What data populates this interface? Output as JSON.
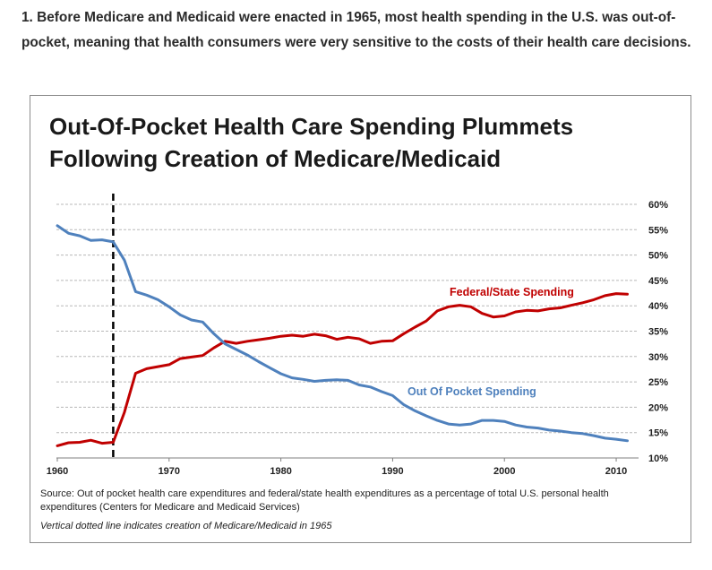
{
  "intro": {
    "number": "1.",
    "text": "Before Medicare and Medicaid were enacted in 1965, most health spending in the U.S. was out-of-pocket, meaning that health consumers were very sensitive to the costs of their health care decisions."
  },
  "chart_data": {
    "type": "line",
    "title_line1": "Out-Of-Pocket Health Care Spending Plummets",
    "title_line2": "Following Creation of Medicare/Medicaid",
    "xlabel": "",
    "ylabel": "",
    "xlim": [
      1960,
      2012
    ],
    "ylim": [
      10,
      60
    ],
    "x_ticks": [
      "1960",
      "1970",
      "1980",
      "1990",
      "2000",
      "2010"
    ],
    "y_ticks": [
      "60%",
      "55%",
      "50%",
      "45%",
      "40%",
      "35%",
      "30%",
      "25%",
      "20%",
      "15%",
      "10%"
    ],
    "grid": true,
    "vertical_marker_year": 1965,
    "source": "Source: Out of pocket health care expenditures and federal/state health expenditures as a percentage of total U.S. personal health expenditures (Centers for Medicare and Medicaid Services)",
    "note": "Vertical dotted line indicates creation of Medicare/Medicaid in 1965",
    "series": [
      {
        "name": "Federal/State Spending",
        "color": "#c00000",
        "x": [
          1960,
          1961,
          1962,
          1963,
          1964,
          1965,
          1966,
          1967,
          1968,
          1969,
          1970,
          1971,
          1972,
          1973,
          1974,
          1975,
          1976,
          1977,
          1978,
          1979,
          1980,
          1981,
          1982,
          1983,
          1984,
          1985,
          1986,
          1987,
          1988,
          1989,
          1990,
          1991,
          1992,
          1993,
          1994,
          1995,
          1996,
          1997,
          1998,
          1999,
          2000,
          2001,
          2002,
          2003,
          2004,
          2005,
          2006,
          2007,
          2008,
          2009,
          2010,
          2011
        ],
        "values": [
          12.4,
          13.0,
          13.1,
          13.5,
          12.9,
          13.1,
          19.0,
          26.7,
          27.6,
          28.0,
          28.4,
          29.6,
          29.9,
          30.2,
          31.7,
          33.0,
          32.6,
          33.0,
          33.3,
          33.6,
          34.0,
          34.2,
          34.0,
          34.4,
          34.1,
          33.4,
          33.8,
          33.5,
          32.6,
          33.0,
          33.1,
          34.5,
          35.8,
          37.0,
          39.0,
          39.8,
          40.1,
          39.8,
          38.5,
          37.8,
          38.0,
          38.8,
          39.1,
          39.0,
          39.4,
          39.6,
          40.1,
          40.6,
          41.2,
          42.0,
          42.4,
          42.3
        ]
      },
      {
        "name": "Out Of Pocket Spending",
        "color": "#4f81bd",
        "x": [
          1960,
          1961,
          1962,
          1963,
          1964,
          1965,
          1966,
          1967,
          1968,
          1969,
          1970,
          1971,
          1972,
          1973,
          1974,
          1975,
          1976,
          1977,
          1978,
          1979,
          1980,
          1981,
          1982,
          1983,
          1984,
          1985,
          1986,
          1987,
          1988,
          1989,
          1990,
          1991,
          1992,
          1993,
          1994,
          1995,
          1996,
          1997,
          1998,
          1999,
          2000,
          2001,
          2002,
          2003,
          2004,
          2005,
          2006,
          2007,
          2008,
          2009,
          2010,
          2011
        ],
        "values": [
          55.8,
          54.3,
          53.8,
          52.9,
          53.0,
          52.6,
          49.0,
          42.8,
          42.1,
          41.2,
          39.8,
          38.2,
          37.2,
          36.8,
          34.5,
          32.5,
          31.4,
          30.3,
          29.0,
          27.8,
          26.6,
          25.8,
          25.5,
          25.1,
          25.3,
          25.4,
          25.3,
          24.4,
          24.0,
          23.1,
          22.3,
          20.5,
          19.3,
          18.3,
          17.4,
          16.7,
          16.5,
          16.7,
          17.4,
          17.4,
          17.2,
          16.5,
          16.1,
          15.9,
          15.5,
          15.3,
          15.0,
          14.8,
          14.4,
          13.9,
          13.7,
          13.4
        ]
      }
    ]
  }
}
